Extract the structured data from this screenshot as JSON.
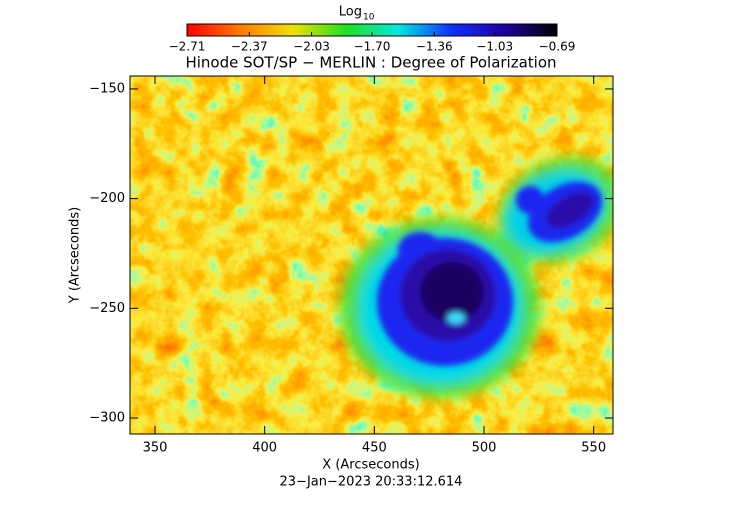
{
  "chart_data": {
    "type": "image",
    "title": "Hinode SOT/SP − MERLIN : Degree of Polarization",
    "x_label": "X (Arcseconds)",
    "y_label": "Y (Arcseconds)",
    "footer": "23−Jan−2023 20:33:12.614",
    "colorbar": {
      "title": "Log",
      "title_subscript": "10",
      "lim": [
        -2.71,
        -0.69
      ],
      "ticks": [
        {
          "value": -2.71,
          "label": "−2.71"
        },
        {
          "value": -2.37,
          "label": "−2.37"
        },
        {
          "value": -2.03,
          "label": "−2.03"
        },
        {
          "value": -1.7,
          "label": "−1.70"
        },
        {
          "value": -1.36,
          "label": "−1.36"
        },
        {
          "value": -1.03,
          "label": "−1.03"
        },
        {
          "value": -0.69,
          "label": "−0.69"
        }
      ],
      "colormap": [
        "#ff0000",
        "#ff7a00",
        "#f0e000",
        "#20e020",
        "#00e8e0",
        "#1030ff",
        "#2000a0",
        "#000000"
      ]
    },
    "xlim": [
      338.6,
      558.8
    ],
    "xticks": [
      350,
      400,
      450,
      500,
      550
    ],
    "ylim": [
      -307.3,
      -144.1
    ],
    "yticks": [
      {
        "value": -300,
        "label": "−300"
      },
      {
        "value": -250,
        "label": "−250"
      },
      {
        "value": -200,
        "label": "−200"
      },
      {
        "value": -150,
        "label": "−150"
      }
    ]
  }
}
